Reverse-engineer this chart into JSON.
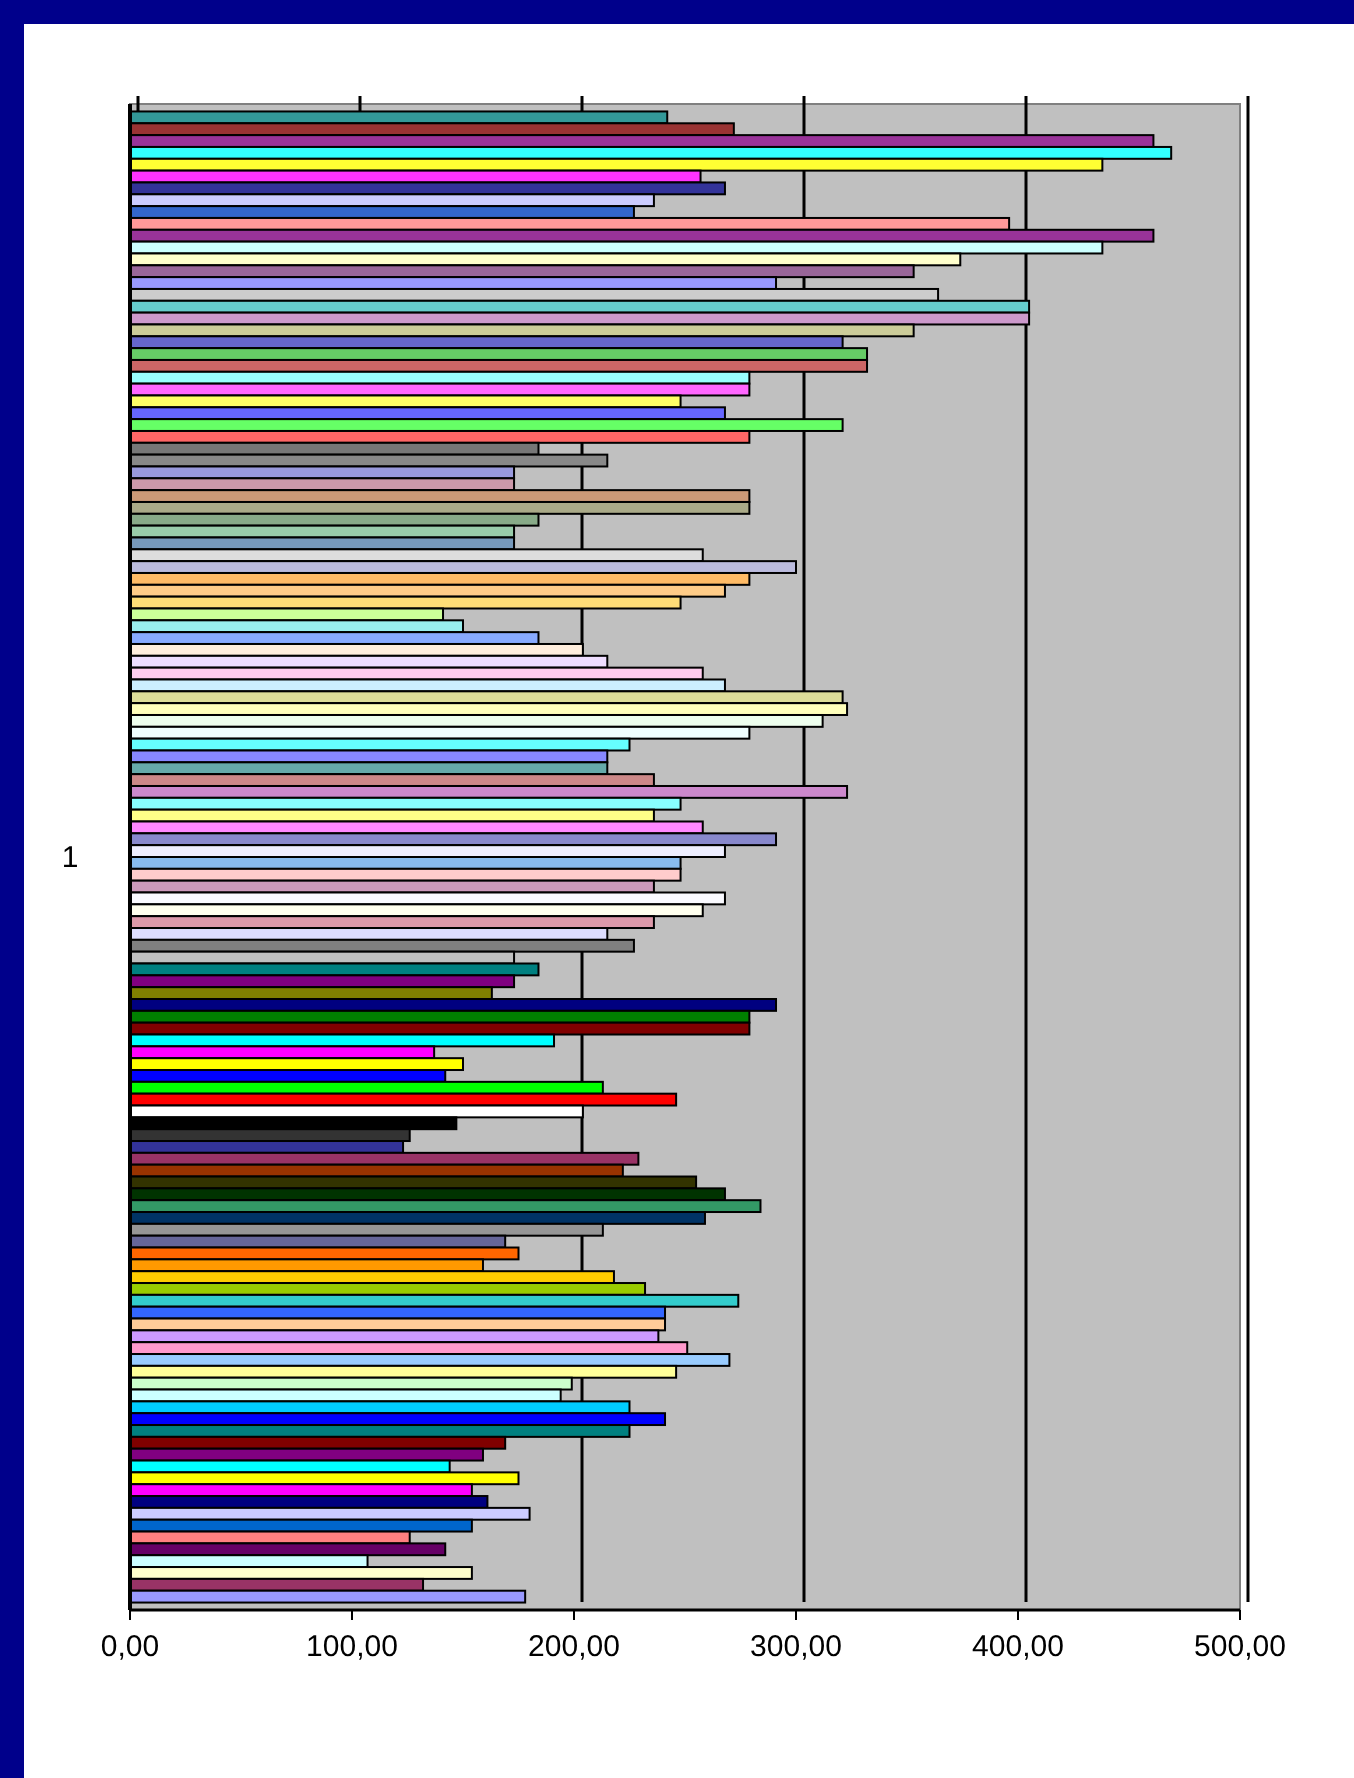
{
  "chart_data": {
    "type": "bar",
    "orientation": "horizontal",
    "categories": [
      "1"
    ],
    "xlim": [
      0,
      500
    ],
    "xticks": [
      {
        "value": 0,
        "label": "0,00"
      },
      {
        "value": 100,
        "label": "100,00"
      },
      {
        "value": 200,
        "label": "200,00"
      },
      {
        "value": 300,
        "label": "300,00"
      },
      {
        "value": 400,
        "label": "400,00"
      },
      {
        "value": 500,
        "label": "500,00"
      }
    ],
    "grid": "x",
    "series": [
      {
        "color": "#339999",
        "values": [
          242
        ]
      },
      {
        "color": "#993333",
        "values": [
          272
        ]
      },
      {
        "color": "#993399",
        "values": [
          461
        ]
      },
      {
        "color": "#33ffff",
        "values": [
          469
        ]
      },
      {
        "color": "#ffff33",
        "values": [
          438
        ]
      },
      {
        "color": "#ff33ff",
        "values": [
          257
        ]
      },
      {
        "color": "#333399",
        "values": [
          268
        ]
      },
      {
        "color": "#ccccff",
        "values": [
          236
        ]
      },
      {
        "color": "#3366cc",
        "values": [
          227
        ]
      },
      {
        "color": "#ff9999",
        "values": [
          396
        ]
      },
      {
        "color": "#993399",
        "values": [
          461
        ]
      },
      {
        "color": "#ccffff",
        "values": [
          438
        ]
      },
      {
        "color": "#ffffcc",
        "values": [
          374
        ]
      },
      {
        "color": "#996699",
        "values": [
          353
        ]
      },
      {
        "color": "#9999ff",
        "values": [
          291
        ]
      },
      {
        "color": "#cccccc",
        "values": [
          364
        ]
      },
      {
        "color": "#66cccc",
        "values": [
          405
        ]
      },
      {
        "color": "#cc99cc",
        "values": [
          405
        ]
      },
      {
        "color": "#cccc99",
        "values": [
          353
        ]
      },
      {
        "color": "#6666cc",
        "values": [
          321
        ]
      },
      {
        "color": "#66cc66",
        "values": [
          332
        ]
      },
      {
        "color": "#cc6666",
        "values": [
          332
        ]
      },
      {
        "color": "#99ffff",
        "values": [
          279
        ]
      },
      {
        "color": "#ff66ff",
        "values": [
          279
        ]
      },
      {
        "color": "#ffff66",
        "values": [
          248
        ]
      },
      {
        "color": "#6666ff",
        "values": [
          268
        ]
      },
      {
        "color": "#66ff66",
        "values": [
          321
        ]
      },
      {
        "color": "#ff6666",
        "values": [
          279
        ]
      },
      {
        "color": "#777777",
        "values": [
          184
        ]
      },
      {
        "color": "#888888",
        "values": [
          215
        ]
      },
      {
        "color": "#9999dd",
        "values": [
          173
        ]
      },
      {
        "color": "#cc99aa",
        "values": [
          173
        ]
      },
      {
        "color": "#cc9977",
        "values": [
          279
        ]
      },
      {
        "color": "#aaaa88",
        "values": [
          279
        ]
      },
      {
        "color": "#88aa88",
        "values": [
          184
        ]
      },
      {
        "color": "#99ccaa",
        "values": [
          173
        ]
      },
      {
        "color": "#7799bb",
        "values": [
          173
        ]
      },
      {
        "color": "#dddddd",
        "values": [
          258
        ]
      },
      {
        "color": "#bbbbdd",
        "values": [
          300
        ]
      },
      {
        "color": "#ffbb66",
        "values": [
          279
        ]
      },
      {
        "color": "#ffcc88",
        "values": [
          268
        ]
      },
      {
        "color": "#ffdd77",
        "values": [
          248
        ]
      },
      {
        "color": "#ccff99",
        "values": [
          141
        ]
      },
      {
        "color": "#99eeee",
        "values": [
          150
        ]
      },
      {
        "color": "#88aaff",
        "values": [
          184
        ]
      },
      {
        "color": "#ffeedd",
        "values": [
          204
        ]
      },
      {
        "color": "#eeddff",
        "values": [
          215
        ]
      },
      {
        "color": "#ffccee",
        "values": [
          258
        ]
      },
      {
        "color": "#cceeff",
        "values": [
          268
        ]
      },
      {
        "color": "#dddd99",
        "values": [
          321
        ]
      },
      {
        "color": "#ffffbb",
        "values": [
          323
        ]
      },
      {
        "color": "#eeffee",
        "values": [
          312
        ]
      },
      {
        "color": "#f0ffff",
        "values": [
          279
        ]
      },
      {
        "color": "#66ffff",
        "values": [
          225
        ]
      },
      {
        "color": "#8888ff",
        "values": [
          215
        ]
      },
      {
        "color": "#66aaaa",
        "values": [
          215
        ]
      },
      {
        "color": "#cc8888",
        "values": [
          236
        ]
      },
      {
        "color": "#cc88cc",
        "values": [
          323
        ]
      },
      {
        "color": "#88ffff",
        "values": [
          248
        ]
      },
      {
        "color": "#ffff88",
        "values": [
          236
        ]
      },
      {
        "color": "#ff88ff",
        "values": [
          258
        ]
      },
      {
        "color": "#8888cc",
        "values": [
          291
        ]
      },
      {
        "color": "#eeeeff",
        "values": [
          268
        ]
      },
      {
        "color": "#88bbee",
        "values": [
          248
        ]
      },
      {
        "color": "#ffcccc",
        "values": [
          248
        ]
      },
      {
        "color": "#cc99bb",
        "values": [
          236
        ]
      },
      {
        "color": "#fafaff",
        "values": [
          268
        ]
      },
      {
        "color": "#ffffee",
        "values": [
          258
        ]
      },
      {
        "color": "#dd99aa",
        "values": [
          236
        ]
      },
      {
        "color": "#ddddff",
        "values": [
          215
        ]
      },
      {
        "color": "#808080",
        "values": [
          227
        ]
      },
      {
        "color": "#c0c0c0",
        "values": [
          173
        ]
      },
      {
        "color": "#008080",
        "values": [
          184
        ]
      },
      {
        "color": "#800080",
        "values": [
          173
        ]
      },
      {
        "color": "#808000",
        "values": [
          163
        ]
      },
      {
        "color": "#000080",
        "values": [
          291
        ]
      },
      {
        "color": "#008000",
        "values": [
          279
        ]
      },
      {
        "color": "#800000",
        "values": [
          279
        ]
      },
      {
        "color": "#00ffff",
        "values": [
          191
        ]
      },
      {
        "color": "#ff00ff",
        "values": [
          137
        ]
      },
      {
        "color": "#ffff00",
        "values": [
          150
        ]
      },
      {
        "color": "#0000ff",
        "values": [
          142
        ]
      },
      {
        "color": "#00ff00",
        "values": [
          213
        ]
      },
      {
        "color": "#ff0000",
        "values": [
          246
        ]
      },
      {
        "color": "#ffffff",
        "values": [
          204
        ]
      },
      {
        "color": "#000000",
        "values": [
          147
        ]
      },
      {
        "color": "#333333",
        "values": [
          126
        ]
      },
      {
        "color": "#333399",
        "values": [
          123
        ]
      },
      {
        "color": "#993366",
        "values": [
          229
        ]
      },
      {
        "color": "#993300",
        "values": [
          222
        ]
      },
      {
        "color": "#333300",
        "values": [
          255
        ]
      },
      {
        "color": "#003300",
        "values": [
          268
        ]
      },
      {
        "color": "#339966",
        "values": [
          284
        ]
      },
      {
        "color": "#003366",
        "values": [
          259
        ]
      },
      {
        "color": "#969696",
        "values": [
          213
        ]
      },
      {
        "color": "#666699",
        "values": [
          169
        ]
      },
      {
        "color": "#ff6600",
        "values": [
          175
        ]
      },
      {
        "color": "#ff9900",
        "values": [
          159
        ]
      },
      {
        "color": "#ffcc00",
        "values": [
          218
        ]
      },
      {
        "color": "#99cc00",
        "values": [
          232
        ]
      },
      {
        "color": "#33cccc",
        "values": [
          274
        ]
      },
      {
        "color": "#3366ff",
        "values": [
          241
        ]
      },
      {
        "color": "#ffcc99",
        "values": [
          241
        ]
      },
      {
        "color": "#cc99ff",
        "values": [
          238
        ]
      },
      {
        "color": "#ff99cc",
        "values": [
          251
        ]
      },
      {
        "color": "#99ccff",
        "values": [
          270
        ]
      },
      {
        "color": "#ffff99",
        "values": [
          246
        ]
      },
      {
        "color": "#ccffcc",
        "values": [
          199
        ]
      },
      {
        "color": "#ccffff",
        "values": [
          194
        ]
      },
      {
        "color": "#00ccff",
        "values": [
          225
        ]
      },
      {
        "color": "#0000ff",
        "values": [
          241
        ]
      },
      {
        "color": "#008080",
        "values": [
          225
        ]
      },
      {
        "color": "#800000",
        "values": [
          169
        ]
      },
      {
        "color": "#800080",
        "values": [
          159
        ]
      },
      {
        "color": "#00ffff",
        "values": [
          144
        ]
      },
      {
        "color": "#ffff00",
        "values": [
          175
        ]
      },
      {
        "color": "#ff00ff",
        "values": [
          154
        ]
      },
      {
        "color": "#000080",
        "values": [
          161
        ]
      },
      {
        "color": "#ccccff",
        "values": [
          180
        ]
      },
      {
        "color": "#0066cc",
        "values": [
          154
        ]
      },
      {
        "color": "#ff8080",
        "values": [
          126
        ]
      },
      {
        "color": "#660066",
        "values": [
          142
        ]
      },
      {
        "color": "#ccffff",
        "values": [
          107
        ]
      },
      {
        "color": "#ffffcc",
        "values": [
          154
        ]
      },
      {
        "color": "#993366",
        "values": [
          132
        ]
      },
      {
        "color": "#9999ff",
        "values": [
          178
        ]
      }
    ]
  }
}
